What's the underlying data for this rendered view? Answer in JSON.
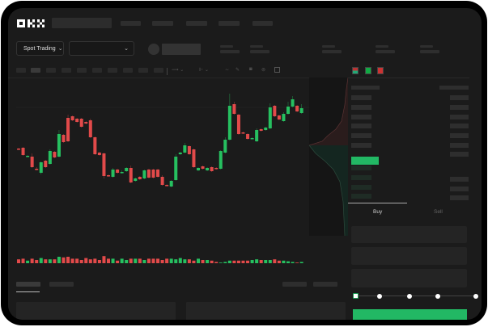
{
  "brand": {
    "logo": "OKX"
  },
  "toolbar": {
    "market_select_label": "Spot Trading",
    "chevron": "chevron-down-icon"
  },
  "order_panel": {
    "buy_tab": "Buy",
    "sell_tab": "Sell",
    "leverage_slider_level": 0
  },
  "colors": {
    "up": "#26c060",
    "down": "#e24a4a",
    "background": "#1b1b1b",
    "accent": "#22b864"
  },
  "chart_data": {
    "type": "candlestick",
    "title": "",
    "xlabel": "",
    "ylabel": "",
    "candles": [
      [
        117,
        116,
        118,
        115
      ],
      [
        118,
        109,
        119,
        108
      ],
      [
        108,
        108,
        109,
        107
      ],
      [
        107,
        94,
        111,
        93
      ],
      [
        92,
        91,
        94,
        90
      ],
      [
        87,
        100,
        101,
        85
      ],
      [
        102,
        94,
        103,
        93
      ],
      [
        98,
        114,
        116,
        97
      ],
      [
        113,
        106,
        114,
        105
      ],
      [
        107,
        135,
        140,
        106
      ],
      [
        134,
        125,
        135,
        124
      ],
      [
        155,
        126,
        159,
        125
      ],
      [
        157,
        152,
        158,
        151
      ],
      [
        154,
        150,
        155,
        149
      ],
      [
        154,
        144,
        155,
        143
      ],
      [
        150,
        148,
        151,
        147
      ],
      [
        152,
        131,
        154,
        130
      ],
      [
        131,
        110,
        132,
        109
      ],
      [
        112,
        109,
        113,
        108
      ],
      [
        111,
        83,
        112,
        80
      ],
      [
        84,
        83,
        85,
        82
      ],
      [
        82,
        91,
        93,
        81
      ],
      [
        91,
        87,
        92,
        86
      ],
      [
        87,
        88,
        90,
        86
      ],
      [
        89,
        93,
        94,
        88
      ],
      [
        93,
        75,
        96,
        74
      ],
      [
        77,
        80,
        81,
        76
      ],
      [
        82,
        79,
        83,
        78
      ],
      [
        80,
        90,
        91,
        79
      ],
      [
        91,
        81,
        92,
        80
      ],
      [
        91,
        81,
        92,
        80
      ],
      [
        91,
        82,
        92,
        81
      ],
      [
        82,
        72,
        84,
        71
      ],
      [
        72,
        71,
        73,
        70
      ],
      [
        70,
        77,
        78,
        69
      ],
      [
        78,
        107,
        110,
        77
      ],
      [
        110,
        112,
        113,
        109
      ],
      [
        112,
        121,
        124,
        111
      ],
      [
        120,
        110,
        121,
        109
      ],
      [
        116,
        94,
        117,
        93
      ],
      [
        90,
        93,
        94,
        89
      ],
      [
        95,
        92,
        96,
        91
      ],
      [
        90,
        93,
        94,
        89
      ],
      [
        94,
        89,
        95,
        88
      ],
      [
        93,
        92,
        94,
        91
      ],
      [
        92,
        114,
        115,
        91
      ],
      [
        112,
        128,
        131,
        111
      ],
      [
        128,
        170,
        185,
        127
      ],
      [
        172,
        160,
        175,
        159
      ],
      [
        159,
        135,
        160,
        134
      ],
      [
        137,
        136,
        138,
        135
      ],
      [
        135,
        129,
        136,
        128
      ],
      [
        130,
        130,
        131,
        129
      ],
      [
        126,
        140,
        142,
        125
      ],
      [
        141,
        139,
        142,
        138
      ],
      [
        140,
        143,
        144,
        139
      ],
      [
        142,
        168,
        173,
        141
      ],
      [
        170,
        157,
        171,
        156
      ],
      [
        158,
        153,
        159,
        152
      ],
      [
        151,
        160,
        162,
        150
      ],
      [
        160,
        169,
        175,
        159
      ],
      [
        169,
        178,
        182,
        168
      ],
      [
        170,
        163,
        171,
        162
      ],
      [
        161,
        167,
        172,
        160
      ]
    ],
    "volume": [
      6,
      7,
      4,
      7,
      5,
      8,
      6,
      6,
      6,
      10,
      9,
      10,
      7,
      7,
      5,
      8,
      6,
      7,
      5,
      11,
      7,
      7,
      4,
      7,
      5,
      7,
      7,
      7,
      5,
      7,
      7,
      7,
      5,
      7,
      7,
      6,
      8,
      6,
      6,
      4,
      7,
      5,
      5,
      4,
      2,
      1,
      2,
      4,
      4,
      4,
      4,
      4,
      5,
      6,
      5,
      5,
      5,
      6,
      4,
      4,
      3,
      2,
      1,
      2
    ]
  }
}
